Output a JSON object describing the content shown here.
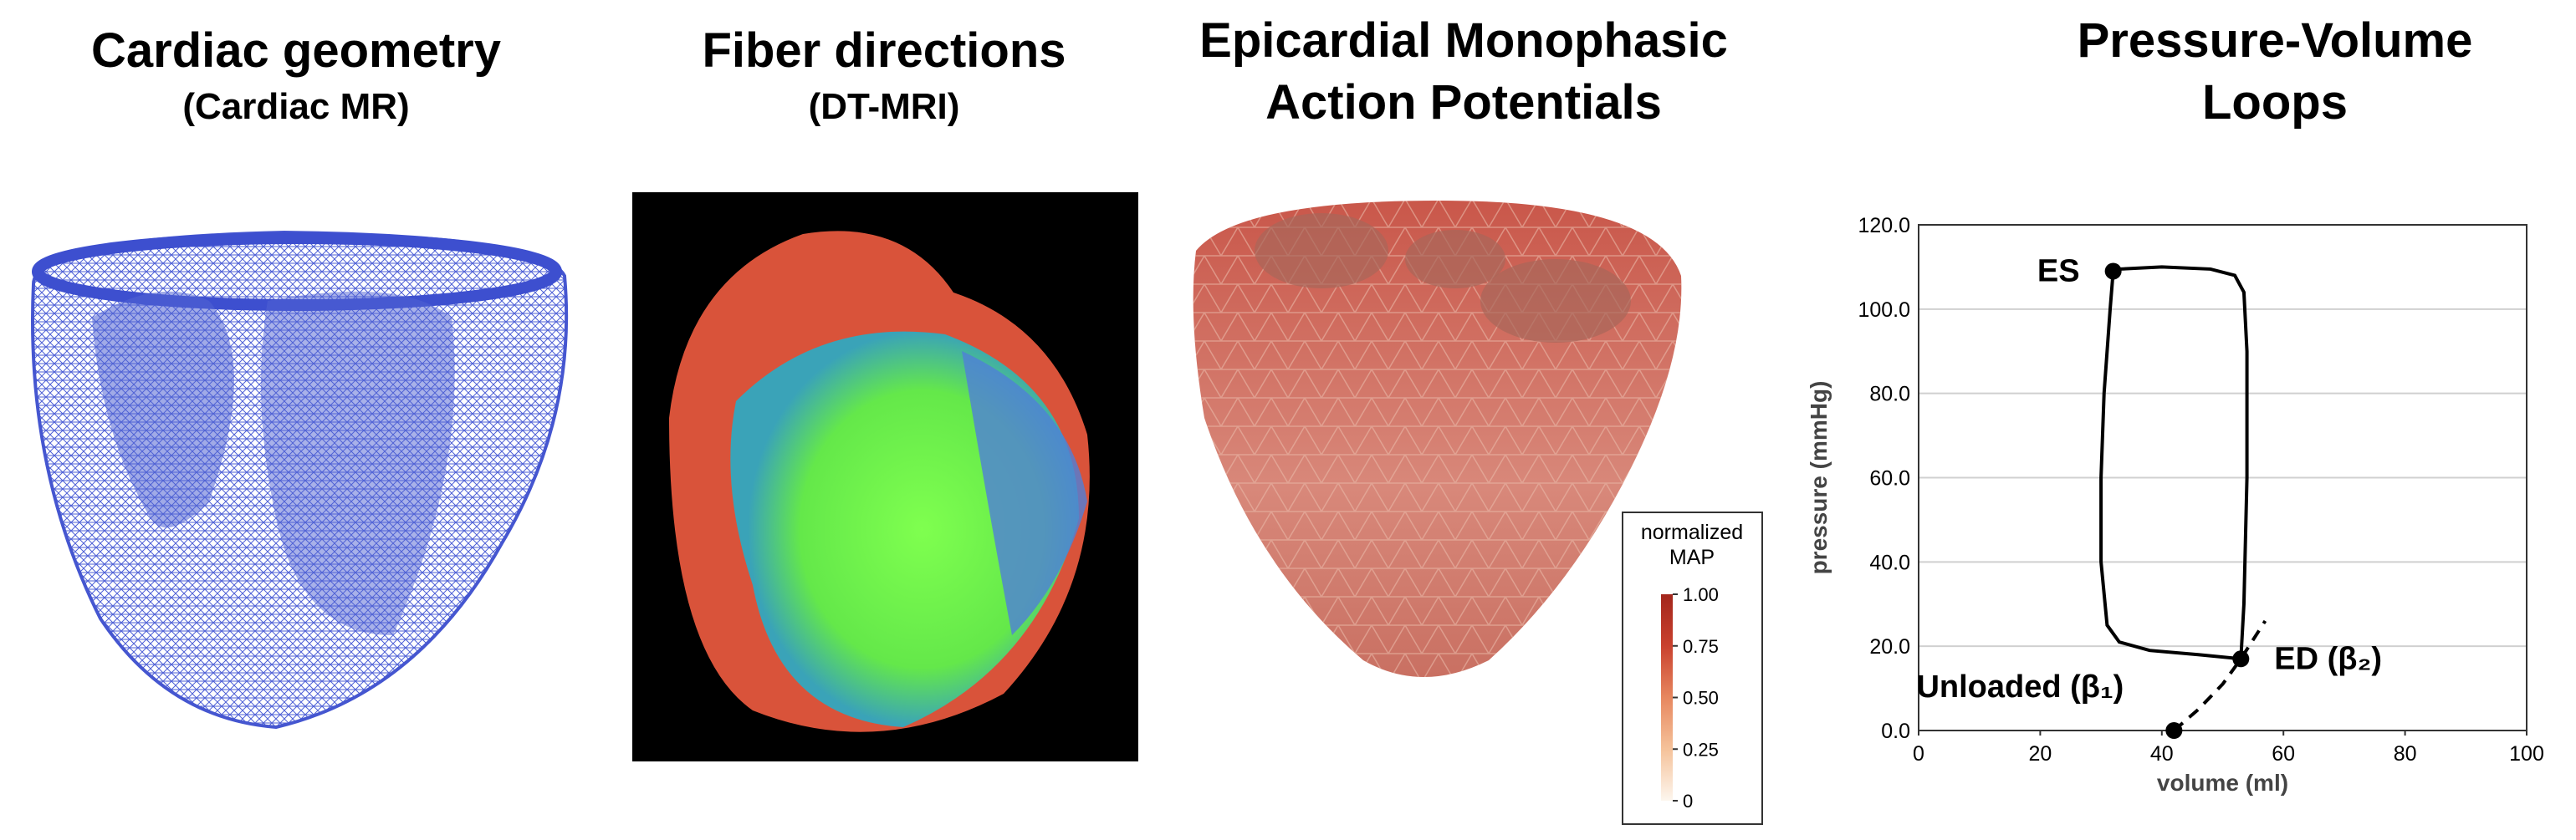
{
  "panels": [
    {
      "title": "Cardiac geometry",
      "subtitle": "(Cardiac MR)"
    },
    {
      "title": "Fiber directions",
      "subtitle": "(DT-MRI)"
    },
    {
      "title": [
        "Epicardial Monophasic",
        "Action Potentials"
      ]
    },
    {
      "title": [
        "Pressure-Volume",
        "Loops"
      ]
    }
  ],
  "colorbar": {
    "title": [
      "normalized",
      "MAP"
    ],
    "lim": [
      0,
      1
    ],
    "ticks": [
      {
        "value": 1,
        "label": "1.00"
      },
      0.75,
      {
        "value": 0.5,
        "label": "0.50"
      },
      0.25,
      0
    ],
    "colors": [
      "#fdf6ee",
      "#f5c29a",
      "#e7875f",
      "#c9412e",
      "#a3261c"
    ]
  },
  "chart_data": {
    "type": "line",
    "xlabel": "volume (ml)",
    "ylabel": "pressure (mmHg)",
    "xlim": [
      0,
      100
    ],
    "ylim": [
      0,
      120
    ],
    "xticks": [
      0,
      20,
      40,
      60,
      80,
      100
    ],
    "yticks": [
      {
        "value": 0,
        "label": "0.0"
      },
      {
        "value": 20,
        "label": "20.0"
      },
      {
        "value": 40,
        "label": "40.0"
      },
      {
        "value": 60,
        "label": "60.0"
      },
      {
        "value": 80,
        "label": "80.0"
      },
      {
        "value": 100,
        "label": "100.0"
      },
      {
        "value": 120,
        "label": "120.0"
      }
    ],
    "grid": true,
    "series": [
      {
        "color": "#000000",
        "dash": false,
        "x": [
          53,
          53.5,
          54,
          54,
          53.5,
          52,
          48,
          40,
          33,
          32,
          31.5,
          30.5,
          30,
          30,
          31,
          33,
          38,
          46,
          53
        ],
        "y": [
          17,
          30,
          60,
          90,
          104,
          108,
          109.5,
          110,
          109.5,
          109,
          100,
          80,
          60,
          40,
          25,
          21,
          19,
          18,
          17
        ]
      },
      {
        "color": "#000000",
        "dash": true,
        "x": [
          42,
          46,
          50,
          53,
          57
        ],
        "y": [
          0,
          5,
          11,
          17,
          26
        ]
      }
    ],
    "points": [
      {
        "label": "ES",
        "x": 32,
        "y": 109,
        "side": "left"
      },
      {
        "label": "ED (β₂)",
        "x": 53,
        "y": 17,
        "side": "right"
      },
      {
        "label": "Unloaded (β₁)",
        "x": 42,
        "y": 0,
        "side": "upleft"
      }
    ]
  }
}
